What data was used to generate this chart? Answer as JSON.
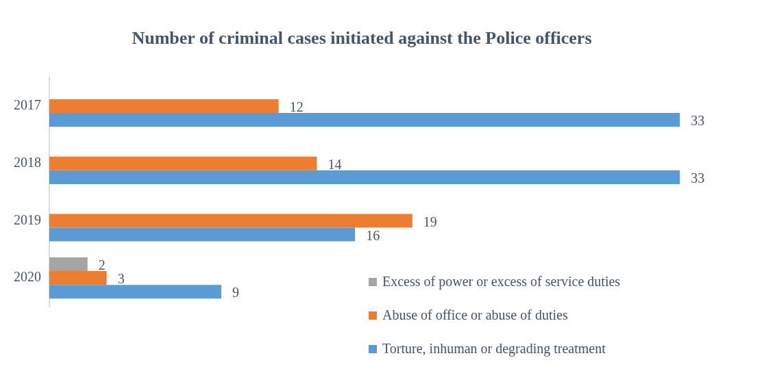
{
  "chart_data": {
    "type": "bar",
    "orientation": "horizontal",
    "title": "Number of criminal cases initiated against the Police officers",
    "categories": [
      "2017",
      "2018",
      "2019",
      "2020"
    ],
    "series": [
      {
        "name": "Excess of power or excess of service duties",
        "color": "#a5a5a5",
        "values": [
          null,
          null,
          null,
          2
        ]
      },
      {
        "name": "Abuse of office or abuse of duties",
        "color": "#ed7d31",
        "values": [
          12,
          14,
          19,
          3
        ]
      },
      {
        "name": "Torture, inhuman or degrading treatment",
        "color": "#5b9bd5",
        "values": [
          33,
          33,
          16,
          9
        ]
      }
    ],
    "data_labels": true,
    "legend": "bottom right",
    "tick_labels": "y"
  }
}
